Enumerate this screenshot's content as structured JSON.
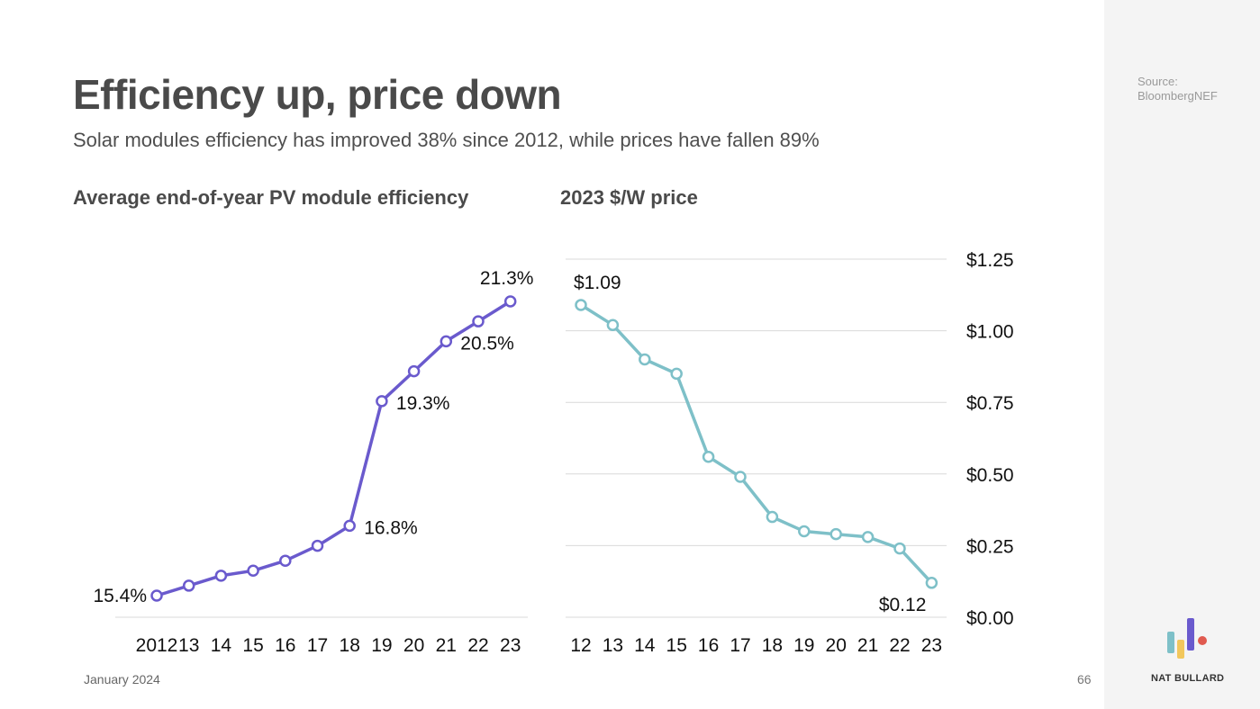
{
  "header": {
    "title": "Efficiency up, price down",
    "subtitle": "Solar modules efficiency has improved 38% since 2012, while prices have fallen 89%"
  },
  "source": {
    "line1": "Source:",
    "line2": "BloombergNEF"
  },
  "footer": {
    "date": "January 2024",
    "page": "66",
    "brand": "NAT BULLARD"
  },
  "colors": {
    "efficiency": "#6a5acd",
    "price": "#7ec0c8",
    "grid": "#d9d9d9",
    "sidebar": "#f4f4f4"
  },
  "chart_data": [
    {
      "type": "line",
      "title": "Average end-of-year PV module efficiency",
      "categories": [
        "2012",
        "13",
        "14",
        "15",
        "16",
        "17",
        "18",
        "19",
        "20",
        "21",
        "22",
        "23"
      ],
      "values": [
        15.4,
        15.6,
        15.8,
        15.9,
        16.1,
        16.4,
        16.8,
        19.3,
        19.9,
        20.5,
        20.9,
        21.3
      ],
      "value_format": "percent",
      "data_labels": [
        {
          "index": 0,
          "text": "15.4%"
        },
        {
          "index": 6,
          "text": "16.8%"
        },
        {
          "index": 7,
          "text": "19.3%"
        },
        {
          "index": 9,
          "text": "20.5%"
        },
        {
          "index": 11,
          "text": "21.3%"
        }
      ],
      "color": "#6a5acd"
    },
    {
      "type": "line",
      "title": "2023 $/W price",
      "categories": [
        "12",
        "13",
        "14",
        "15",
        "16",
        "17",
        "18",
        "19",
        "20",
        "21",
        "22",
        "23"
      ],
      "values": [
        1.09,
        1.02,
        0.9,
        0.85,
        0.56,
        0.49,
        0.35,
        0.3,
        0.29,
        0.28,
        0.24,
        0.12
      ],
      "ylim": [
        0,
        1.25
      ],
      "yticks": [
        "$0.00",
        "$0.25",
        "$0.50",
        "$0.75",
        "$1.00",
        "$1.25"
      ],
      "ytick_values": [
        0,
        0.25,
        0.5,
        0.75,
        1.0,
        1.25
      ],
      "grid": true,
      "data_labels": [
        {
          "index": 0,
          "text": "$1.09"
        },
        {
          "index": 11,
          "text": "$0.12"
        }
      ],
      "color": "#7ec0c8"
    }
  ]
}
